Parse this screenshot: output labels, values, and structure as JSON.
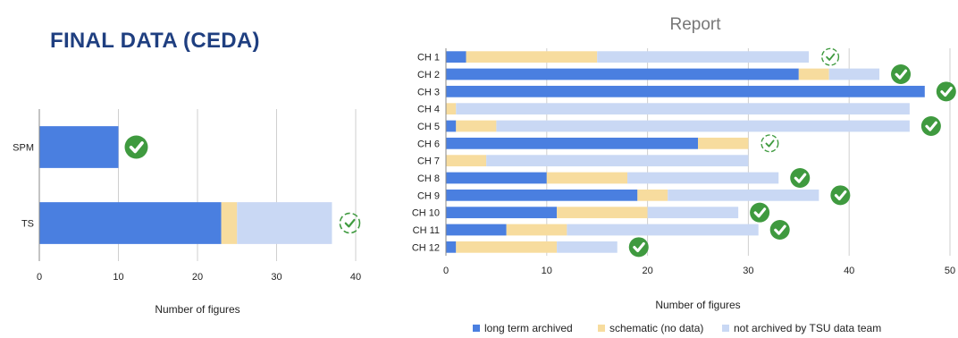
{
  "page": {
    "title": "FINAL DATA (CEDA)"
  },
  "colors": {
    "long_term_archived": "#4a7fe0",
    "schematic": "#f7dc9e",
    "not_archived": "#c9d8f4",
    "check": "#3f9a3f",
    "grid": "#cfcfcf"
  },
  "chart_data": [
    {
      "type": "bar",
      "orientation": "horizontal",
      "stacked": true,
      "title": "",
      "xlabel": "Number of figures",
      "ylabel": "",
      "xlim": [
        0,
        40
      ],
      "xticks": [
        0,
        10,
        20,
        30,
        40
      ],
      "grid": true,
      "categories": [
        "SPM",
        "TS"
      ],
      "series": [
        {
          "name": "long term archived",
          "color_key": "long_term_archived",
          "values": [
            10,
            23
          ]
        },
        {
          "name": "schematic (no data)",
          "color_key": "schematic",
          "values": [
            0,
            2
          ]
        },
        {
          "name": "not archived by TSU data team",
          "color_key": "not_archived",
          "values": [
            0,
            12
          ]
        }
      ],
      "status_marks": [
        "complete",
        "in-progress"
      ]
    },
    {
      "type": "bar",
      "orientation": "horizontal",
      "stacked": true,
      "title": "Report",
      "xlabel": "Number of figures",
      "ylabel": "",
      "xlim": [
        0,
        50
      ],
      "xticks": [
        0,
        10,
        20,
        30,
        40,
        50
      ],
      "grid": true,
      "legend_position": "bottom",
      "categories": [
        "CH 1",
        "CH 2",
        "CH 3",
        "CH 4",
        "CH 5",
        "CH 6",
        "CH 7",
        "CH 8",
        "CH 9",
        "CH 10",
        "CH 11",
        "CH 12"
      ],
      "series": [
        {
          "name": "long term archived",
          "color_key": "long_term_archived",
          "values": [
            2,
            35,
            47.5,
            0,
            1,
            25,
            0,
            10,
            19,
            11,
            6,
            1
          ]
        },
        {
          "name": "schematic (no data)",
          "color_key": "schematic",
          "values": [
            13,
            3,
            0,
            1,
            4,
            5,
            4,
            8,
            3,
            9,
            6,
            10
          ]
        },
        {
          "name": "not archived by TSU data team",
          "color_key": "not_archived",
          "values": [
            21,
            5,
            0,
            45,
            41,
            0,
            26,
            15,
            15,
            9,
            19,
            6
          ]
        }
      ],
      "status_marks": [
        "in-progress",
        "complete",
        "complete",
        "none",
        "complete",
        "in-progress",
        "none",
        "complete",
        "complete",
        "complete",
        "complete",
        "complete"
      ]
    }
  ]
}
